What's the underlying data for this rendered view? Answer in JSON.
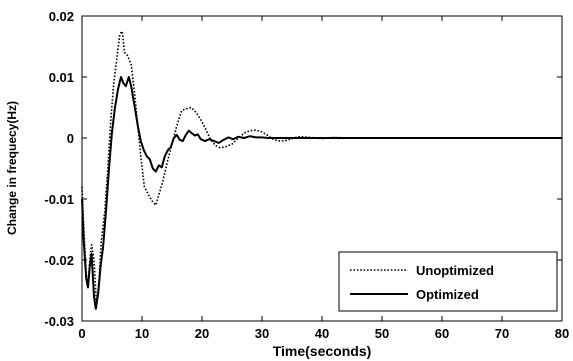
{
  "chart_data": {
    "type": "line",
    "title": "",
    "xlabel": "Time(seconds)",
    "ylabel": "Change in frequecy(Hz)",
    "xlim": [
      0,
      80
    ],
    "ylim": [
      -0.03,
      0.02
    ],
    "xticks": [
      0,
      10,
      20,
      30,
      40,
      50,
      60,
      70,
      80
    ],
    "yticks": [
      -0.03,
      -0.02,
      -0.01,
      0,
      0.01,
      0.02
    ],
    "xtick_labels": [
      "0",
      "10",
      "20",
      "30",
      "40",
      "50",
      "60",
      "70",
      "80"
    ],
    "ytick_labels": [
      "-0.03",
      "-0.02",
      "-0.01",
      "0",
      "0.01",
      "0.02"
    ],
    "grid": false,
    "legend_position": "bottom-right",
    "series": [
      {
        "name": "Unoptimized",
        "style": "dotted",
        "color": "#000000",
        "points": [
          [
            0,
            -0.008
          ],
          [
            0.3,
            -0.015
          ],
          [
            0.7,
            -0.022
          ],
          [
            1.0,
            -0.0245
          ],
          [
            1.3,
            -0.02
          ],
          [
            1.6,
            -0.0175
          ],
          [
            2.0,
            -0.02
          ],
          [
            2.4,
            -0.027
          ],
          [
            2.8,
            -0.024
          ],
          [
            3.2,
            -0.017
          ],
          [
            3.8,
            -0.012
          ],
          [
            4.3,
            -0.005
          ],
          [
            4.8,
            0.003
          ],
          [
            5.3,
            0.009
          ],
          [
            5.8,
            0.013
          ],
          [
            6.3,
            0.017
          ],
          [
            6.7,
            0.0175
          ],
          [
            7.1,
            0.014
          ],
          [
            7.6,
            0.0135
          ],
          [
            8.2,
            0.012
          ],
          [
            8.8,
            0.007
          ],
          [
            9.3,
            0.002
          ],
          [
            9.8,
            -0.003
          ],
          [
            10.4,
            -0.008
          ],
          [
            11.2,
            -0.0095
          ],
          [
            11.8,
            -0.0105
          ],
          [
            12.3,
            -0.011
          ],
          [
            12.9,
            -0.009
          ],
          [
            13.5,
            -0.007
          ],
          [
            14.2,
            -0.004
          ],
          [
            15.0,
            -0.001
          ],
          [
            15.8,
            0.002
          ],
          [
            16.6,
            0.0045
          ],
          [
            17.4,
            0.0048
          ],
          [
            18.2,
            0.005
          ],
          [
            19.0,
            0.0042
          ],
          [
            19.8,
            0.003
          ],
          [
            20.6,
            0.0015
          ],
          [
            21.4,
            -0.0002
          ],
          [
            22.2,
            -0.0012
          ],
          [
            23.0,
            -0.0016
          ],
          [
            24.0,
            -0.0014
          ],
          [
            25.0,
            -0.001
          ],
          [
            26.0,
            -0.0001
          ],
          [
            27.0,
            0.0008
          ],
          [
            28.0,
            0.0012
          ],
          [
            29.0,
            0.0013
          ],
          [
            30.0,
            0.001
          ],
          [
            31.0,
            0.0004
          ],
          [
            32.0,
            -0.0003
          ],
          [
            33.0,
            -0.0005
          ],
          [
            34.0,
            -0.0004
          ],
          [
            35.0,
            -0.0001
          ],
          [
            36.0,
            0.0002
          ],
          [
            37.0,
            0.0002
          ],
          [
            38.0,
            0.0001
          ],
          [
            39.0,
            0.0
          ],
          [
            40.0,
            -0.0001
          ],
          [
            42.0,
            0.0001
          ],
          [
            44.0,
            0.0
          ],
          [
            50.0,
            0.0
          ],
          [
            60.0,
            0.0
          ],
          [
            70.0,
            0.0
          ],
          [
            80.0,
            0.0
          ]
        ]
      },
      {
        "name": "Optimized",
        "style": "solid",
        "color": "#000000",
        "points": [
          [
            0,
            -0.01
          ],
          [
            0.3,
            -0.017
          ],
          [
            0.7,
            -0.023
          ],
          [
            1.0,
            -0.0245
          ],
          [
            1.3,
            -0.021
          ],
          [
            1.6,
            -0.019
          ],
          [
            2.0,
            -0.026
          ],
          [
            2.3,
            -0.028
          ],
          [
            2.7,
            -0.0255
          ],
          [
            3.1,
            -0.021
          ],
          [
            3.5,
            -0.018
          ],
          [
            4.0,
            -0.012
          ],
          [
            4.5,
            -0.005
          ],
          [
            5.0,
            0.001
          ],
          [
            5.5,
            0.005
          ],
          [
            6.0,
            0.008
          ],
          [
            6.5,
            0.01
          ],
          [
            6.9,
            0.009
          ],
          [
            7.3,
            0.0085
          ],
          [
            7.8,
            0.01
          ],
          [
            8.2,
            0.0085
          ],
          [
            8.8,
            0.005
          ],
          [
            9.3,
            0.002
          ],
          [
            9.8,
            -0.0005
          ],
          [
            10.3,
            -0.002
          ],
          [
            10.8,
            -0.003
          ],
          [
            11.3,
            -0.0035
          ],
          [
            11.8,
            -0.005
          ],
          [
            12.3,
            -0.0055
          ],
          [
            12.8,
            -0.0045
          ],
          [
            13.3,
            -0.0048
          ],
          [
            13.8,
            -0.003
          ],
          [
            14.3,
            -0.002
          ],
          [
            14.8,
            -0.0015
          ],
          [
            15.3,
            0.0
          ],
          [
            15.8,
            0.0005
          ],
          [
            16.3,
            -0.0003
          ],
          [
            16.8,
            -0.0005
          ],
          [
            17.3,
            0.0005
          ],
          [
            17.8,
            0.0012
          ],
          [
            18.3,
            0.0008
          ],
          [
            18.8,
            0.0004
          ],
          [
            19.3,
            0.0006
          ],
          [
            19.8,
            -0.0002
          ],
          [
            20.5,
            -0.0005
          ],
          [
            21.2,
            -0.0002
          ],
          [
            22.0,
            -0.0005
          ],
          [
            22.8,
            -0.0008
          ],
          [
            23.6,
            -0.0003
          ],
          [
            24.4,
            0.0001
          ],
          [
            25.2,
            -0.0002
          ],
          [
            26.0,
            0.0002
          ],
          [
            27.0,
            0.0
          ],
          [
            28.0,
            0.0003
          ],
          [
            29.0,
            0.0001
          ],
          [
            30.0,
            0.0001
          ],
          [
            31.0,
            0.0
          ],
          [
            35.0,
            0.0
          ],
          [
            40.0,
            0.0
          ],
          [
            50.0,
            0.0
          ],
          [
            60.0,
            0.0
          ],
          [
            70.0,
            0.0
          ],
          [
            80.0,
            0.0
          ]
        ]
      }
    ]
  }
}
